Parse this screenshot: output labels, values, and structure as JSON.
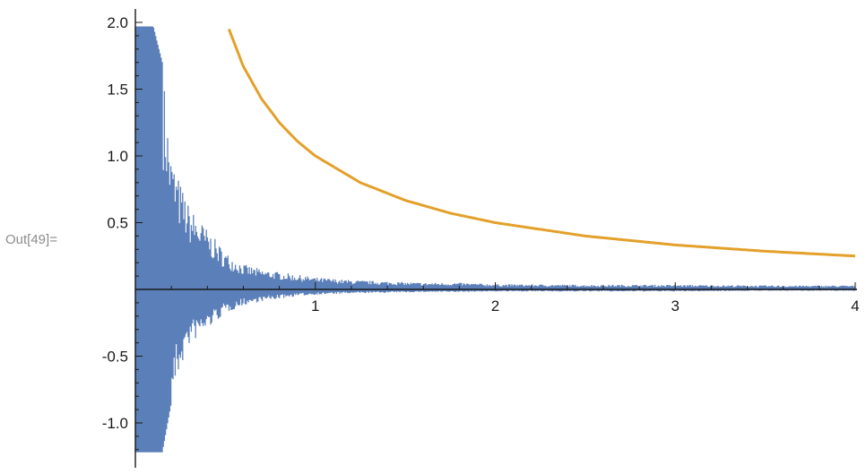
{
  "cell_label": "Out[49]=",
  "colors": {
    "series_1": "#5b7fb8",
    "series_2": "#e3a02a",
    "axis": "#1a1a1a"
  },
  "chart_data": {
    "type": "line",
    "title": "",
    "xlabel": "",
    "ylabel": "",
    "xlim": [
      0,
      4
    ],
    "ylim": [
      -1.25,
      2.05
    ],
    "grid": false,
    "legend": "none",
    "x_ticks": [
      {
        "value": 1,
        "label": "1"
      },
      {
        "value": 2,
        "label": "2"
      },
      {
        "value": 3,
        "label": "3"
      },
      {
        "value": 4,
        "label": "4"
      }
    ],
    "y_ticks": [
      {
        "value": 2.0,
        "label": "2.0"
      },
      {
        "value": 1.5,
        "label": "1.5"
      },
      {
        "value": 1.0,
        "label": "1.0"
      },
      {
        "value": 0.5,
        "label": "0.5"
      },
      {
        "value": -0.5,
        "label": "-0.5"
      },
      {
        "value": -1.0,
        "label": "-1.0"
      }
    ],
    "series": [
      {
        "style": "filled-oscillation",
        "x": [
          0.0,
          0.05,
          0.1,
          0.15,
          0.2,
          0.25,
          0.3,
          0.4,
          0.5,
          0.6,
          0.7,
          0.8,
          0.9,
          1.0,
          1.2,
          1.4,
          1.6,
          1.8,
          2.0,
          2.5,
          3.0,
          3.5,
          4.0
        ],
        "upper": [
          1.97,
          1.97,
          1.97,
          1.7,
          1.0,
          0.8,
          0.62,
          0.45,
          0.28,
          0.19,
          0.15,
          0.13,
          0.11,
          0.09,
          0.07,
          0.06,
          0.05,
          0.05,
          0.04,
          0.035,
          0.035,
          0.03,
          0.03
        ],
        "lower": [
          -1.22,
          -1.22,
          -1.22,
          -1.22,
          -0.85,
          -0.6,
          -0.42,
          -0.3,
          -0.18,
          -0.12,
          -0.09,
          -0.07,
          -0.05,
          -0.04,
          -0.03,
          -0.025,
          -0.02,
          -0.02,
          -0.015,
          -0.015,
          -0.015,
          -0.01,
          -0.01
        ]
      },
      {
        "style": "line",
        "x": [
          0.52,
          0.6,
          0.7,
          0.8,
          0.9,
          1.0,
          1.25,
          1.5,
          1.75,
          2.0,
          2.5,
          3.0,
          3.5,
          4.0
        ],
        "y": [
          1.95,
          1.67,
          1.43,
          1.25,
          1.11,
          1.0,
          0.8,
          0.667,
          0.571,
          0.5,
          0.4,
          0.333,
          0.286,
          0.25
        ]
      }
    ]
  }
}
